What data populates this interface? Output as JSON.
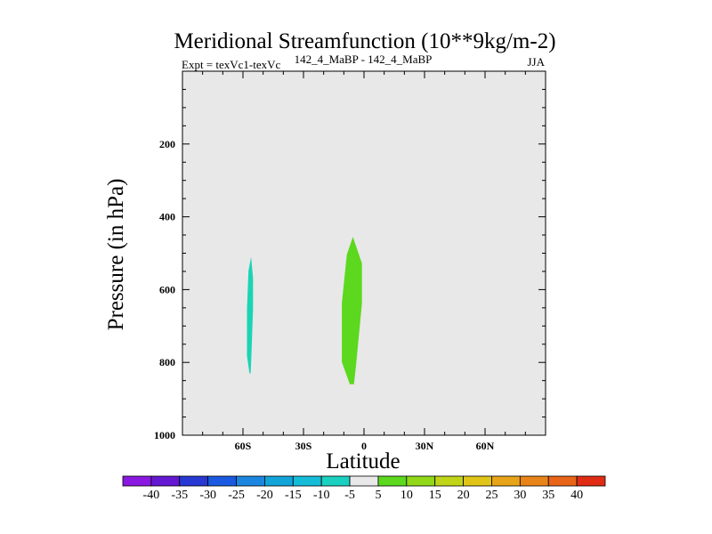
{
  "chart_data": {
    "type": "contour",
    "title": "Meridional Streamfunction (10**9kg/m-2)",
    "subtitle_left": "Expt = texVc1-texVc",
    "subtitle_center": "142_4_MaBP - 142_4_MaBP",
    "subtitle_right": "JJA",
    "xlabel": "Latitude",
    "ylabel": "Pressure (in hPa)",
    "xlim": [
      -90,
      90
    ],
    "ylim": [
      1000,
      0
    ],
    "x_ticks": [
      {
        "value": -60,
        "label": "60S"
      },
      {
        "value": -30,
        "label": "30S"
      },
      {
        "value": 0,
        "label": "0"
      },
      {
        "value": 30,
        "label": "30N"
      },
      {
        "value": 60,
        "label": "60N"
      }
    ],
    "y_ticks": [
      {
        "value": 200,
        "label": "200"
      },
      {
        "value": 400,
        "label": "400"
      },
      {
        "value": 600,
        "label": "600"
      },
      {
        "value": 800,
        "label": "800"
      },
      {
        "value": 1000,
        "label": "1000"
      }
    ],
    "background_color": "#e8e8e8",
    "regions": [
      {
        "name": "negative-cell",
        "level": "-10 to -5",
        "color": "#1ad4b4",
        "lat_range": [
          -58,
          -55
        ],
        "pressure_range": [
          510,
          830
        ]
      },
      {
        "name": "positive-cell",
        "level": "5 to 10",
        "color": "#5cd81e",
        "lat_range": [
          -11,
          -1
        ],
        "pressure_range": [
          455,
          860
        ]
      }
    ],
    "colorbar": {
      "labels": [
        "-40",
        "-35",
        "-30",
        "-25",
        "-20",
        "-15",
        "-10",
        "-5",
        "5",
        "10",
        "15",
        "20",
        "25",
        "30",
        "35",
        "40"
      ],
      "colors": [
        "#8a18e0",
        "#6418d2",
        "#2838d2",
        "#1a5ae0",
        "#1a86e0",
        "#12a4d8",
        "#14bcd8",
        "#1ad0c0",
        "#e8e8e8",
        "#5cd81e",
        "#90d818",
        "#c0d418",
        "#e0c418",
        "#e8a418",
        "#e88418",
        "#e86418",
        "#e02c14"
      ]
    }
  }
}
